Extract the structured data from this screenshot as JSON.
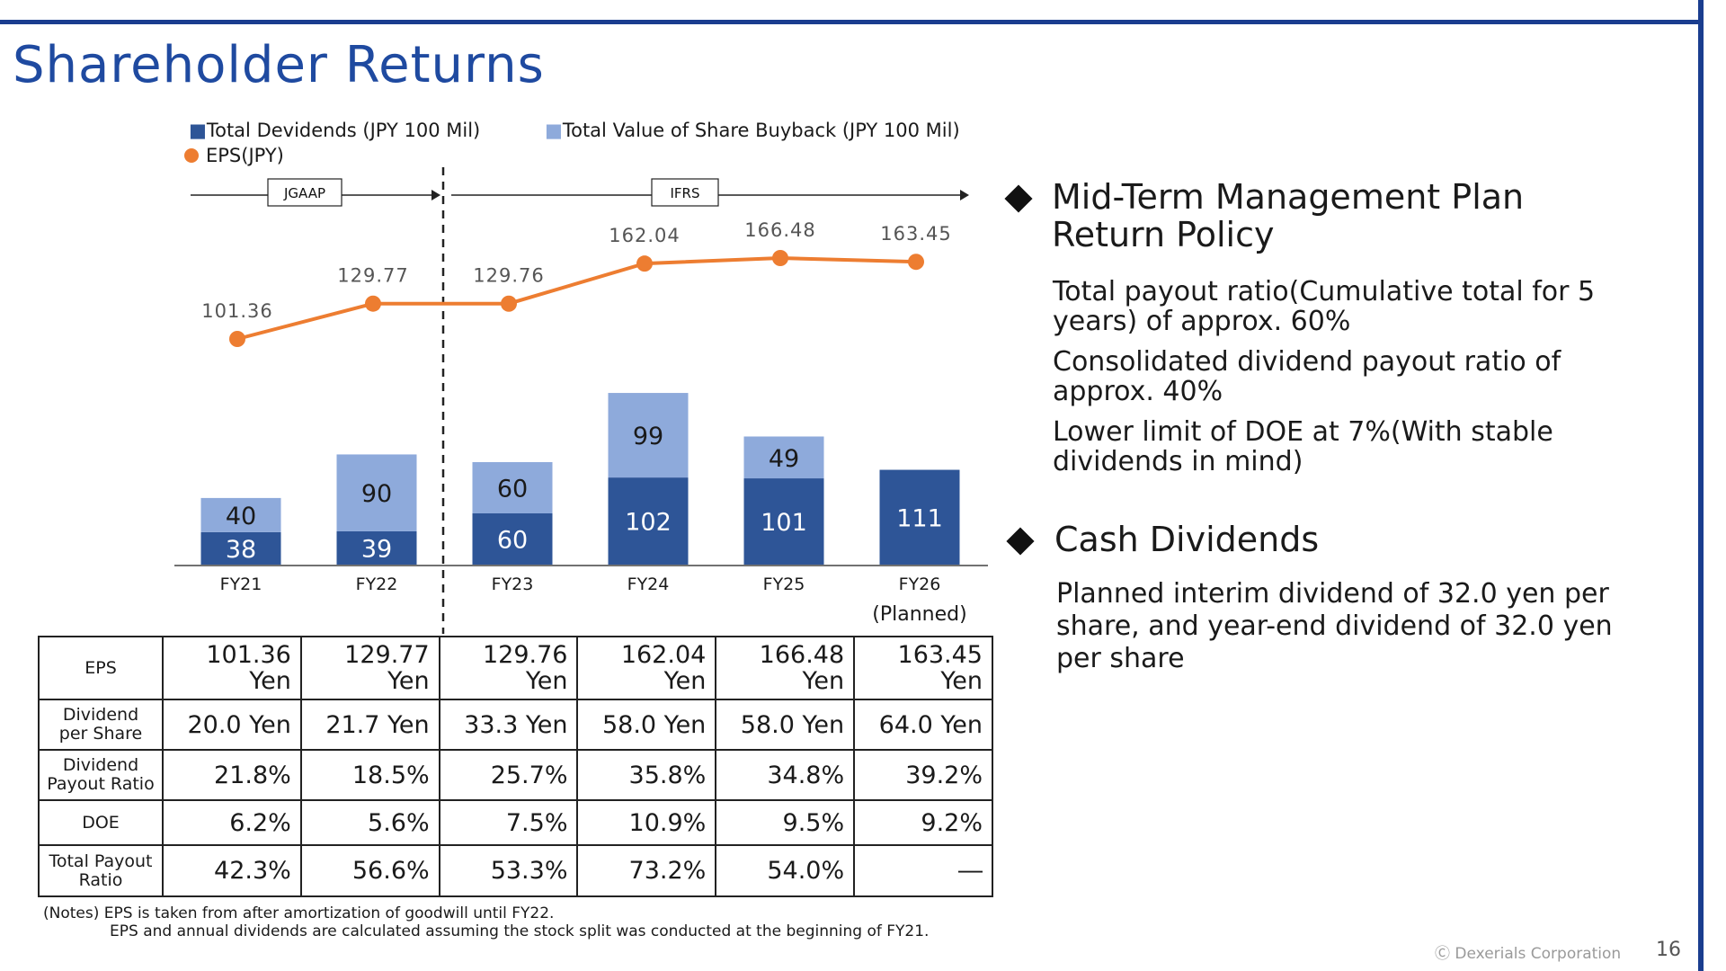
{
  "title": "Shareholder Returns",
  "legend": {
    "dividends": "■Total Devidends (JPY 100 Mil)",
    "buyback": "■Total Value of Share Buyback (JPY 100 Mil)",
    "eps": "EPS(JPY)"
  },
  "colors": {
    "dividends": "#2e5597",
    "buyback": "#8eaadb",
    "eps": "#ed7d31",
    "accent": "#1a3d8f"
  },
  "chart_data": {
    "type": "bar",
    "categories": [
      "FY21",
      "FY22",
      "FY23",
      "FY24",
      "FY25",
      "FY26"
    ],
    "category_note": "(Planned)",
    "stacked": true,
    "series": [
      {
        "name": "Total Devidends (JPY 100 Mil)",
        "values": [
          38,
          39,
          60,
          102,
          101,
          111
        ]
      },
      {
        "name": "Total Value of Share Buyback (JPY 100 Mil)",
        "values": [
          40,
          90,
          60,
          99,
          49,
          null
        ]
      }
    ],
    "line_series": {
      "name": "EPS(JPY)",
      "values": [
        101.36,
        129.77,
        129.76,
        162.04,
        166.48,
        163.45
      ],
      "labels": [
        "101.36",
        "129.77",
        "129.76",
        "162.04",
        "166.48",
        "163.45"
      ]
    },
    "eras": [
      {
        "label": "JGAAP",
        "from": "FY21",
        "to": "FY22"
      },
      {
        "label": "IFRS",
        "from": "FY23",
        "to": "FY26"
      }
    ]
  },
  "table": {
    "rows": [
      {
        "header": [
          "EPS"
        ],
        "cells": [
          [
            "101.36",
            "Yen"
          ],
          [
            "129.77",
            "Yen"
          ],
          [
            "129.76",
            "Yen"
          ],
          [
            "162.04",
            "Yen"
          ],
          [
            "166.48",
            "Yen"
          ],
          [
            "163.45",
            "Yen"
          ]
        ]
      },
      {
        "header": [
          "Dividend",
          "per Share"
        ],
        "cells": [
          [
            "20.0 Yen"
          ],
          [
            "21.7 Yen"
          ],
          [
            "33.3 Yen"
          ],
          [
            "58.0 Yen"
          ],
          [
            "58.0 Yen"
          ],
          [
            "64.0 Yen"
          ]
        ]
      },
      {
        "header": [
          "Dividend",
          "Payout Ratio"
        ],
        "cells": [
          [
            "21.8%"
          ],
          [
            "18.5%"
          ],
          [
            "25.7%"
          ],
          [
            "35.8%"
          ],
          [
            "34.8%"
          ],
          [
            "39.2%"
          ]
        ]
      },
      {
        "header": [
          "DOE"
        ],
        "cells": [
          [
            "6.2%"
          ],
          [
            "5.6%"
          ],
          [
            "7.5%"
          ],
          [
            "10.9%"
          ],
          [
            "9.5%"
          ],
          [
            "9.2%"
          ]
        ]
      },
      {
        "header": [
          "Total Payout",
          "Ratio"
        ],
        "cells": [
          [
            "42.3%"
          ],
          [
            "56.6%"
          ],
          [
            "53.3%"
          ],
          [
            "73.2%"
          ],
          [
            "54.0%"
          ],
          [
            "―"
          ]
        ]
      }
    ]
  },
  "notes": {
    "line1": "(Notes) EPS is taken from after amortization of goodwill until FY22.",
    "line2": "EPS and annual dividends are calculated assuming the stock split was conducted at the beginning of FY21."
  },
  "policy": {
    "heading_line1": "Mid-Term Management Plan",
    "heading_line2": "Return Policy",
    "items": [
      {
        "line1": "Total payout ratio(Cumulative total for 5",
        "line2": "years) of approx. 60%"
      },
      {
        "line1": "Consolidated dividend payout ratio of",
        "line2": "approx. 40%"
      },
      {
        "line1": "Lower limit of DOE at 7%(With stable",
        "line2": "dividends in mind)"
      }
    ]
  },
  "cash": {
    "heading": "Cash Dividends",
    "lines": [
      "Planned interim dividend of 32.0 yen per",
      "share, and year-end dividend of 32.0 yen",
      "per share"
    ]
  },
  "footer": {
    "copyright": "Ⓒ Dexerials Corporation",
    "page": "16"
  }
}
